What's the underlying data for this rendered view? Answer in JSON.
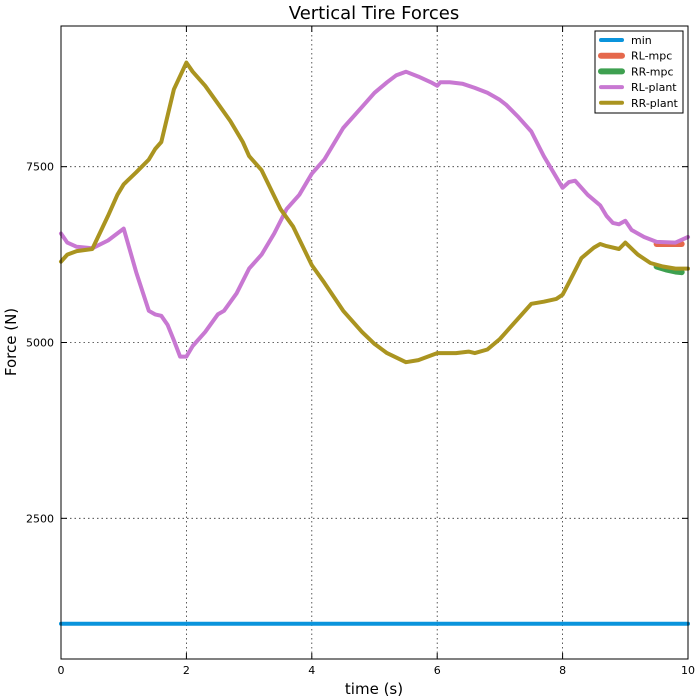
{
  "chart_data": {
    "type": "line",
    "title": "Vertical Tire Forces",
    "xlabel": "time (s)",
    "ylabel": "Force (N)",
    "xlim": [
      0,
      10
    ],
    "ylim": [
      500,
      9500
    ],
    "xticks": [
      0,
      2,
      4,
      6,
      8,
      10
    ],
    "yticks": [
      2500,
      5000,
      7500
    ],
    "grid": true,
    "legend_position": "top-right",
    "series": [
      {
        "name": "min",
        "color": "#0a94dc",
        "x": [
          0,
          10
        ],
        "y": [
          1000,
          1000
        ]
      },
      {
        "name": "RL-mpc",
        "color": "#e5684c",
        "x": [
          9.5,
          9.65,
          9.8,
          9.9
        ],
        "y": [
          6400,
          6400,
          6400,
          6400
        ]
      },
      {
        "name": "RR-mpc",
        "color": "#3ea050",
        "x": [
          9.5,
          9.65,
          9.8,
          9.9
        ],
        "y": [
          6080,
          6040,
          6010,
          6000
        ]
      },
      {
        "name": "RL-plant",
        "color": "#c878d2",
        "x": [
          0,
          0.1,
          0.25,
          0.5,
          0.75,
          1.0,
          1.2,
          1.4,
          1.5,
          1.6,
          1.7,
          1.8,
          1.9,
          2.0,
          2.1,
          2.3,
          2.5,
          2.6,
          2.8,
          3.0,
          3.2,
          3.4,
          3.6,
          3.8,
          4.0,
          4.2,
          4.5,
          4.8,
          5.0,
          5.2,
          5.35,
          5.5,
          5.7,
          5.9,
          6.0,
          6.05,
          6.2,
          6.4,
          6.6,
          6.8,
          6.9,
          7.0,
          7.1,
          7.3,
          7.5,
          7.7,
          7.9,
          8.0,
          8.1,
          8.2,
          8.4,
          8.6,
          8.7,
          8.8,
          8.9,
          9.0,
          9.1,
          9.3,
          9.5,
          9.8,
          10.0
        ],
        "y": [
          6550,
          6420,
          6360,
          6340,
          6450,
          6620,
          6000,
          5450,
          5400,
          5380,
          5250,
          5030,
          4800,
          4800,
          4950,
          5150,
          5400,
          5450,
          5700,
          6050,
          6250,
          6550,
          6900,
          7100,
          7400,
          7600,
          8050,
          8350,
          8550,
          8700,
          8800,
          8850,
          8780,
          8700,
          8650,
          8700,
          8700,
          8680,
          8620,
          8550,
          8500,
          8450,
          8380,
          8200,
          8000,
          7650,
          7350,
          7200,
          7280,
          7300,
          7100,
          6950,
          6800,
          6700,
          6680,
          6730,
          6600,
          6500,
          6430,
          6420,
          6500
        ]
      },
      {
        "name": "RR-plant",
        "color": "#aa9420",
        "x": [
          0,
          0.1,
          0.25,
          0.5,
          0.75,
          0.9,
          1.0,
          1.2,
          1.4,
          1.5,
          1.6,
          1.8,
          2.0,
          2.1,
          2.3,
          2.5,
          2.7,
          2.9,
          3.0,
          3.2,
          3.5,
          3.7,
          4.0,
          4.2,
          4.5,
          4.8,
          5.0,
          5.2,
          5.5,
          5.7,
          6.0,
          6.1,
          6.3,
          6.5,
          6.6,
          6.8,
          7.0,
          7.1,
          7.3,
          7.5,
          7.7,
          7.9,
          8.0,
          8.1,
          8.3,
          8.5,
          8.6,
          8.7,
          8.9,
          9.0,
          9.2,
          9.4,
          9.6,
          9.8,
          10.0
        ],
        "y": [
          6150,
          6250,
          6300,
          6330,
          6800,
          7100,
          7250,
          7420,
          7600,
          7750,
          7850,
          8600,
          8980,
          8850,
          8650,
          8400,
          8150,
          7850,
          7650,
          7450,
          6900,
          6650,
          6100,
          5850,
          5450,
          5150,
          4980,
          4850,
          4720,
          4750,
          4850,
          4850,
          4850,
          4870,
          4850,
          4900,
          5050,
          5150,
          5350,
          5550,
          5580,
          5620,
          5680,
          5850,
          6200,
          6350,
          6400,
          6370,
          6330,
          6420,
          6250,
          6130,
          6080,
          6050,
          6050
        ]
      }
    ]
  }
}
